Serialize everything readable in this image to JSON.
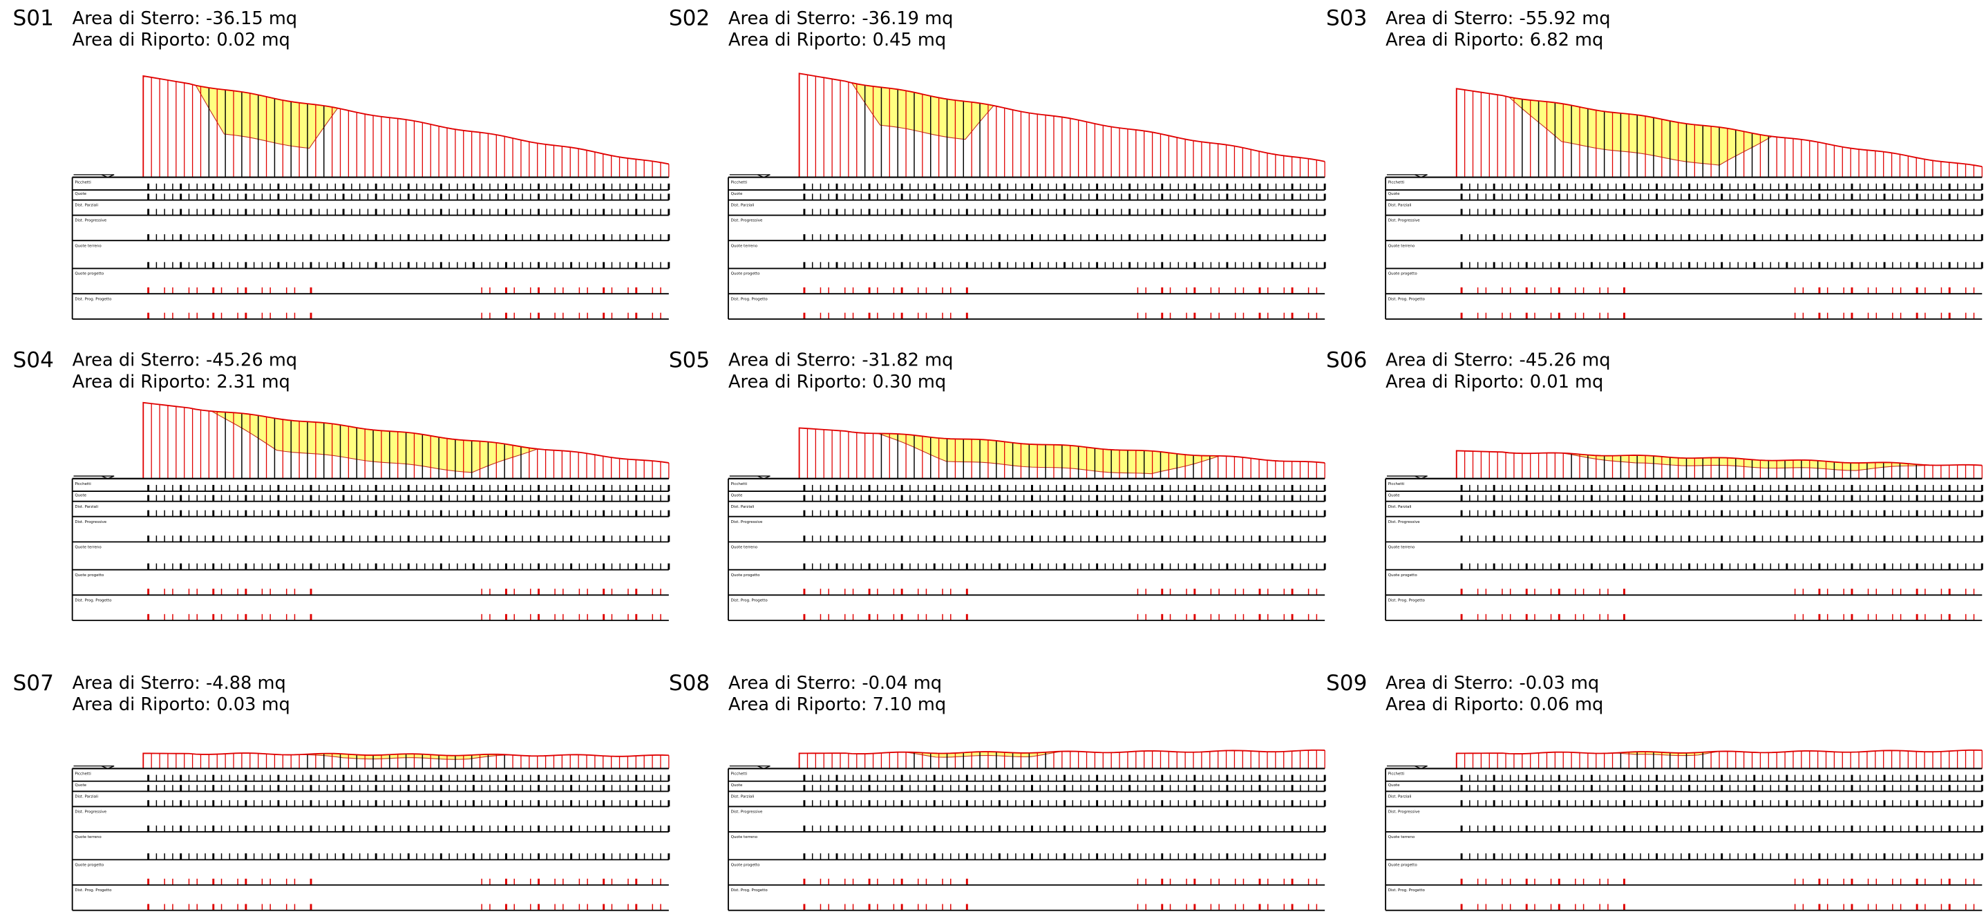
{
  "sections": [
    {
      "id": "S01",
      "sterro": "Area di Sterro: -36.15 mq",
      "riporto": "Area di Riporto: 0.02 mq"
    },
    {
      "id": "S02",
      "sterro": "Area di Sterro: -36.19 mq",
      "riporto": "Area di Riporto: 0.45 mq"
    },
    {
      "id": "S03",
      "sterro": "Area di Sterro: -55.92 mq",
      "riporto": "Area di Riporto: 6.82 mq"
    },
    {
      "id": "S04",
      "sterro": "Area di Sterro: -45.26 mq",
      "riporto": "Area di Riporto: 2.31 mq"
    },
    {
      "id": "S05",
      "sterro": "Area di Sterro: -31.82 mq",
      "riporto": "Area di Riporto: 0.30 mq"
    },
    {
      "id": "S06",
      "sterro": "Area di Sterro: -45.26 mq",
      "riporto": "Area di Riporto: 0.01 mq"
    },
    {
      "id": "S07",
      "sterro": "Area di Sterro: -4.88 mq",
      "riporto": "Area di Riporto: 0.03 mq"
    },
    {
      "id": "S08",
      "sterro": "Area di Sterro: -0.04 mq",
      "riporto": "Area di Riporto: 7.10 mq"
    },
    {
      "id": "S09",
      "sterro": "Area di Sterro: -0.03 mq",
      "riporto": "Area di Riporto: 0.06 mq"
    }
  ],
  "row_labels": [
    "Picchetti",
    "Quote",
    "Dist. Parziali",
    "Dist. Progressive",
    "Quote terreno",
    "Quote progetto",
    "Dist. Prog. Progetto"
  ]
}
